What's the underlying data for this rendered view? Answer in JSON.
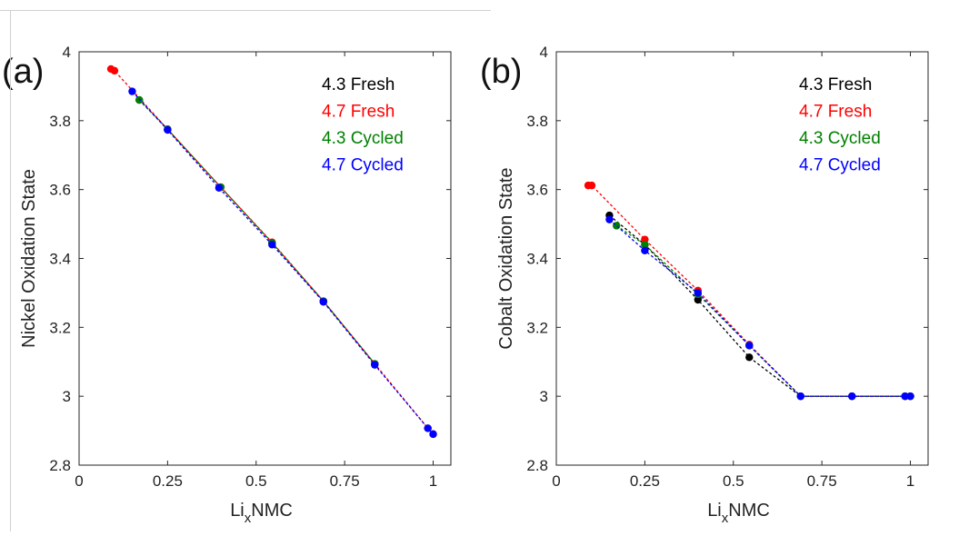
{
  "chart_data": [
    {
      "type": "scatter",
      "panel_label": "(a)",
      "xlabel": "Li",
      "xlabel_sub": "x",
      "xlabel_suffix": "NMC",
      "ylabel": "Nickel Oxidation State",
      "xlim": [
        0,
        1.05
      ],
      "ylim": [
        2.8,
        4
      ],
      "xticks": [
        0,
        0.25,
        0.5,
        0.75,
        1
      ],
      "xtick_labels": [
        "0",
        "0.25",
        "0.5",
        "0.75",
        "1"
      ],
      "yticks": [
        2.8,
        3,
        3.2,
        3.4,
        3.6,
        3.8,
        4
      ],
      "ytick_labels": [
        "2.8",
        "3",
        "3.2",
        "3.4",
        "3.6",
        "3.8",
        "4"
      ],
      "legend_position": "top-right",
      "series": [
        {
          "name": "4.3 Fresh",
          "color": "#000000",
          "x": [
            0.17,
            0.25,
            0.4,
            0.545,
            0.69,
            0.835
          ],
          "y": [
            3.86,
            3.775,
            3.607,
            3.445,
            3.276,
            3.094
          ]
        },
        {
          "name": "4.7 Fresh",
          "color": "#ff0000",
          "x": [
            0.09,
            0.1,
            0.25,
            0.4,
            0.545,
            0.69,
            0.835,
            0.985,
            1.0
          ],
          "y": [
            3.95,
            3.945,
            3.775,
            3.607,
            3.447,
            3.276,
            3.094,
            2.907,
            2.89
          ]
        },
        {
          "name": "4.3 Cycled",
          "color": "#008000",
          "x": [
            0.17,
            0.25,
            0.4,
            0.545,
            0.69,
            0.835
          ],
          "y": [
            3.86,
            3.775,
            3.607,
            3.445,
            3.276,
            3.094
          ]
        },
        {
          "name": "4.7 Cycled",
          "color": "#0000ff",
          "x": [
            0.15,
            0.25,
            0.395,
            0.545,
            0.69,
            0.835,
            0.985,
            1.0
          ],
          "y": [
            3.885,
            3.773,
            3.605,
            3.44,
            3.274,
            3.091,
            2.907,
            2.89
          ]
        }
      ]
    },
    {
      "type": "scatter",
      "panel_label": "(b)",
      "xlabel": "Li",
      "xlabel_sub": "x",
      "xlabel_suffix": "NMC",
      "ylabel": "Cobalt Oxidation State",
      "xlim": [
        0,
        1.05
      ],
      "ylim": [
        2.8,
        4
      ],
      "xticks": [
        0,
        0.25,
        0.5,
        0.75,
        1
      ],
      "xtick_labels": [
        "0",
        "0.25",
        "0.5",
        "0.75",
        "1"
      ],
      "yticks": [
        2.8,
        3,
        3.2,
        3.4,
        3.6,
        3.8,
        4
      ],
      "ytick_labels": [
        "2.8",
        "3",
        "3.2",
        "3.4",
        "3.6",
        "3.8",
        "4"
      ],
      "legend_position": "top-right",
      "series": [
        {
          "name": "4.3 Fresh",
          "color": "#000000",
          "x": [
            0.15,
            0.25,
            0.4,
            0.545,
            0.69,
            0.835,
            0.985,
            1.0
          ],
          "y": [
            3.525,
            3.44,
            3.28,
            3.113,
            3.0,
            3.0,
            3.0,
            3.0
          ]
        },
        {
          "name": "4.7 Fresh",
          "color": "#ff0000",
          "x": [
            0.09,
            0.1,
            0.25,
            0.4,
            0.545,
            0.69,
            0.835,
            0.985,
            1.0
          ],
          "y": [
            3.612,
            3.612,
            3.455,
            3.307,
            3.15,
            3.0,
            3.0,
            3.0,
            3.0
          ]
        },
        {
          "name": "4.3 Cycled",
          "color": "#008000",
          "x": [
            0.17,
            0.25,
            0.4,
            0.545,
            0.69,
            0.835,
            0.985,
            1.0
          ],
          "y": [
            3.495,
            3.44,
            3.296,
            3.147,
            3.0,
            3.0,
            3.0,
            3.0
          ]
        },
        {
          "name": "4.7 Cycled",
          "color": "#0000ff",
          "x": [
            0.15,
            0.25,
            0.4,
            0.545,
            0.69,
            0.835,
            0.985,
            1.0
          ],
          "y": [
            3.513,
            3.423,
            3.3,
            3.147,
            3.0,
            3.0,
            3.0,
            3.0
          ]
        }
      ]
    }
  ]
}
